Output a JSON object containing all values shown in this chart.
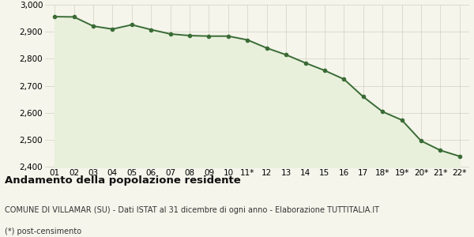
{
  "x_labels": [
    "01",
    "02",
    "03",
    "04",
    "05",
    "06",
    "07",
    "08",
    "09",
    "10",
    "11*",
    "12",
    "13",
    "14",
    "15",
    "16",
    "17",
    "18*",
    "19*",
    "20*",
    "21*",
    "22*"
  ],
  "values": [
    2956,
    2955,
    2921,
    2910,
    2926,
    2908,
    2892,
    2886,
    2884,
    2884,
    2870,
    2840,
    2815,
    2785,
    2757,
    2725,
    2660,
    2605,
    2574,
    2497,
    2462,
    2440
  ],
  "line_color": "#3a6b35",
  "fill_color": "#e8f0dc",
  "marker": "o",
  "marker_size": 3,
  "line_width": 1.4,
  "ylim": [
    2400,
    3000
  ],
  "yticks": [
    2400,
    2500,
    2600,
    2700,
    2800,
    2900,
    3000
  ],
  "ytick_labels": [
    "2,400",
    "2,500",
    "2,600",
    "2,700",
    "2,800",
    "2,900",
    "3,000"
  ],
  "bg_color": "#f5f5ec",
  "plot_bg_color": "#f5f5ec",
  "title": "Andamento della popolazione residente",
  "subtitle": "COMUNE DI VILLAMAR (SU) - Dati ISTAT al 31 dicembre di ogni anno - Elaborazione TUTTITALIA.IT",
  "footnote": "(*) post-censimento",
  "title_fontsize": 9.5,
  "subtitle_fontsize": 7,
  "footnote_fontsize": 7,
  "grid_color": "#d0d0c0",
  "tick_fontsize": 7.5
}
